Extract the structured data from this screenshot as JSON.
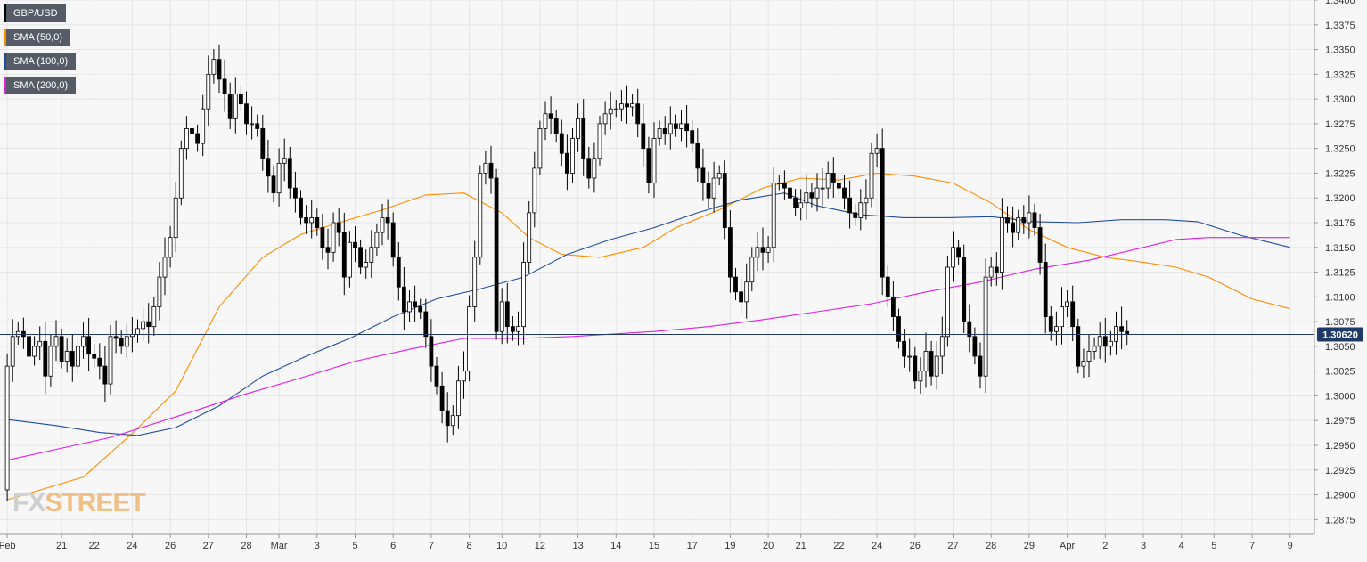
{
  "legend": [
    {
      "label": "GBP/USD",
      "color": "#000000"
    },
    {
      "label": "SMA (50,0)",
      "color": "#ff8c00"
    },
    {
      "label": "SMA (100,0)",
      "color": "#1f4e9c"
    },
    {
      "label": "SMA (200,0)",
      "color": "#e01fe0"
    }
  ],
  "watermark": {
    "prefix": "FX",
    "suffix": "STREET"
  },
  "chart_data": {
    "type": "candlestick",
    "instrument": "GBP/USD",
    "timeframe_candles_per_day": 6,
    "ylim": [
      1.286,
      1.34
    ],
    "y_ticks": [
      "1.3400",
      "1.3375",
      "1.3350",
      "1.3325",
      "1.3300",
      "1.3275",
      "1.3250",
      "1.3225",
      "1.3200",
      "1.3175",
      "1.3150",
      "1.3125",
      "1.3100",
      "1.3075",
      "1.3050",
      "1.3025",
      "1.3000",
      "1.2975",
      "1.2950",
      "1.2925",
      "1.2900",
      "1.2875"
    ],
    "x_ticks": [
      {
        "label": "Feb",
        "index": 1
      },
      {
        "label": "21",
        "index": 11
      },
      {
        "label": "22",
        "index": 17
      },
      {
        "label": "24",
        "index": 24
      },
      {
        "label": "26",
        "index": 31
      },
      {
        "label": "27",
        "index": 38
      },
      {
        "label": "28",
        "index": 45
      },
      {
        "label": "Mar",
        "index": 51
      },
      {
        "label": "3",
        "index": 58
      },
      {
        "label": "5",
        "index": 65
      },
      {
        "label": "6",
        "index": 72
      },
      {
        "label": "7",
        "index": 79
      },
      {
        "label": "8",
        "index": 86
      },
      {
        "label": "10",
        "index": 92
      },
      {
        "label": "12",
        "index": 99
      },
      {
        "label": "13",
        "index": 106
      },
      {
        "label": "14",
        "index": 113
      },
      {
        "label": "15",
        "index": 120
      },
      {
        "label": "17",
        "index": 127
      },
      {
        "label": "19",
        "index": 134
      },
      {
        "label": "20",
        "index": 141
      },
      {
        "label": "21",
        "index": 147
      },
      {
        "label": "22",
        "index": 154
      },
      {
        "label": "24",
        "index": 161
      },
      {
        "label": "26",
        "index": 168
      },
      {
        "label": "27",
        "index": 175
      },
      {
        "label": "28",
        "index": 182
      },
      {
        "label": "29",
        "index": 189
      },
      {
        "label": "Apr",
        "index": 196
      },
      {
        "label": "2",
        "index": 203
      },
      {
        "label": "3",
        "index": 210
      },
      {
        "label": "4",
        "index": 217
      },
      {
        "label": "5",
        "index": 223
      },
      {
        "label": "7",
        "index": 230
      },
      {
        "label": "9",
        "index": 237
      }
    ],
    "close_series": [
      1.2905,
      1.303,
      1.306,
      1.3065,
      1.306,
      1.304,
      1.305,
      1.3055,
      1.302,
      1.305,
      1.306,
      1.3035,
      1.3045,
      1.303,
      1.305,
      1.306,
      1.3042,
      1.3038,
      1.303,
      1.3012,
      1.306,
      1.3058,
      1.305,
      1.306,
      1.3062,
      1.3068,
      1.3075,
      1.307,
      1.309,
      1.312,
      1.314,
      1.316,
      1.32,
      1.325,
      1.327,
      1.3265,
      1.3255,
      1.329,
      1.3325,
      1.334,
      1.332,
      1.3305,
      1.328,
      1.3305,
      1.3295,
      1.3275,
      1.3275,
      1.327,
      1.324,
      1.3222,
      1.3205,
      1.3235,
      1.324,
      1.321,
      1.32,
      1.318,
      1.3175,
      1.318,
      1.317,
      1.315,
      1.3145,
      1.3175,
      1.3165,
      1.312,
      1.3155,
      1.315,
      1.313,
      1.3135,
      1.315,
      1.3165,
      1.318,
      1.3175,
      1.314,
      1.311,
      1.3085,
      1.3095,
      1.309,
      1.3085,
      1.306,
      1.303,
      1.301,
      1.2985,
      1.297,
      1.298,
      1.3015,
      1.3025,
      1.309,
      1.314,
      1.3225,
      1.3235,
      1.322,
      1.3065,
      1.3095,
      1.307,
      1.3065,
      1.307,
      1.3135,
      1.3185,
      1.323,
      1.327,
      1.3285,
      1.328,
      1.3265,
      1.3245,
      1.3225,
      1.326,
      1.328,
      1.324,
      1.322,
      1.324,
      1.3275,
      1.3285,
      1.329,
      1.329,
      1.3295,
      1.3292,
      1.3295,
      1.3275,
      1.325,
      1.3215,
      1.326,
      1.327,
      1.3265,
      1.3275,
      1.327,
      1.3275,
      1.3268,
      1.3255,
      1.323,
      1.3215,
      1.32,
      1.322,
      1.3225,
      1.317,
      1.312,
      1.3105,
      1.3095,
      1.3115,
      1.314,
      1.315,
      1.3145,
      1.315,
      1.3215,
      1.3215,
      1.321,
      1.32,
      1.319,
      1.3195,
      1.3205,
      1.32,
      1.321,
      1.321,
      1.3225,
      1.3215,
      1.321,
      1.32,
      1.3185,
      1.318,
      1.3195,
      1.32,
      1.3245,
      1.325,
      1.312,
      1.31,
      1.308,
      1.3055,
      1.304,
      1.304,
      1.3015,
      1.3025,
      1.3045,
      1.302,
      1.304,
      1.306,
      1.313,
      1.315,
      1.314,
      1.3075,
      1.306,
      1.304,
      1.302,
      1.312,
      1.313,
      1.3125,
      1.318,
      1.3175,
      1.3165,
      1.318,
      1.3175,
      1.3185,
      1.317,
      1.3135,
      1.308,
      1.3065,
      1.307,
      1.309,
      1.3095,
      1.307,
      1.303,
      1.3035,
      1.3045,
      1.305,
      1.306,
      1.305,
      1.3055,
      1.307,
      1.3065,
      1.3062
    ],
    "sma_50": [
      [
        1,
        1.2895
      ],
      [
        15,
        1.2918
      ],
      [
        24,
        1.2962
      ],
      [
        32,
        1.3005
      ],
      [
        40,
        1.309
      ],
      [
        48,
        1.314
      ],
      [
        55,
        1.3163
      ],
      [
        62,
        1.3175
      ],
      [
        70,
        1.3188
      ],
      [
        78,
        1.3203
      ],
      [
        85,
        1.3205
      ],
      [
        92,
        1.3185
      ],
      [
        97,
        1.316
      ],
      [
        103,
        1.3143
      ],
      [
        110,
        1.314
      ],
      [
        118,
        1.315
      ],
      [
        124,
        1.317
      ],
      [
        132,
        1.3188
      ],
      [
        140,
        1.321
      ],
      [
        147,
        1.322
      ],
      [
        154,
        1.3218
      ],
      [
        161,
        1.3225
      ],
      [
        168,
        1.3222
      ],
      [
        175,
        1.3215
      ],
      [
        182,
        1.3195
      ],
      [
        189,
        1.3168
      ],
      [
        196,
        1.315
      ],
      [
        203,
        1.314
      ],
      [
        210,
        1.3135
      ],
      [
        216,
        1.313
      ],
      [
        222,
        1.312
      ],
      [
        230,
        1.3098
      ],
      [
        237,
        1.3088
      ]
    ],
    "sma_100": [
      [
        1,
        1.2976
      ],
      [
        10,
        1.297
      ],
      [
        18,
        1.2963
      ],
      [
        25,
        1.296
      ],
      [
        32,
        1.2968
      ],
      [
        40,
        1.299
      ],
      [
        48,
        1.302
      ],
      [
        56,
        1.304
      ],
      [
        64,
        1.3058
      ],
      [
        72,
        1.308
      ],
      [
        80,
        1.3098
      ],
      [
        88,
        1.3108
      ],
      [
        96,
        1.312
      ],
      [
        104,
        1.3143
      ],
      [
        112,
        1.3158
      ],
      [
        120,
        1.317
      ],
      [
        128,
        1.3185
      ],
      [
        136,
        1.3198
      ],
      [
        144,
        1.3205
      ],
      [
        150,
        1.3192
      ],
      [
        158,
        1.3183
      ],
      [
        166,
        1.318
      ],
      [
        174,
        1.318
      ],
      [
        182,
        1.3181
      ],
      [
        190,
        1.3176
      ],
      [
        198,
        1.3175
      ],
      [
        206,
        1.3178
      ],
      [
        214,
        1.3178
      ],
      [
        220,
        1.3176
      ],
      [
        228,
        1.3162
      ],
      [
        237,
        1.315
      ]
    ],
    "sma_200": [
      [
        1,
        1.2935
      ],
      [
        20,
        1.2958
      ],
      [
        35,
        1.2984
      ],
      [
        45,
        1.3002
      ],
      [
        55,
        1.3018
      ],
      [
        65,
        1.3035
      ],
      [
        75,
        1.3047
      ],
      [
        85,
        1.3058
      ],
      [
        95,
        1.3058
      ],
      [
        105,
        1.306
      ],
      [
        120,
        1.3065
      ],
      [
        130,
        1.307
      ],
      [
        140,
        1.3077
      ],
      [
        150,
        1.3085
      ],
      [
        160,
        1.3093
      ],
      [
        170,
        1.3105
      ],
      [
        180,
        1.3115
      ],
      [
        190,
        1.3128
      ],
      [
        200,
        1.3137
      ],
      [
        210,
        1.315
      ],
      [
        216,
        1.3158
      ],
      [
        222,
        1.316
      ],
      [
        237,
        1.316
      ]
    ],
    "current_price": "1.30620",
    "current_price_value": 1.3062,
    "colors": {
      "up_body": "#ffffff",
      "down_body": "#000000",
      "wick": "#000000",
      "sma_50": "#ff8c00",
      "sma_100": "#1f4e9c",
      "sma_200": "#e01fe0",
      "price_line": "#1f3a66",
      "grid": "#e6e6e6"
    }
  }
}
